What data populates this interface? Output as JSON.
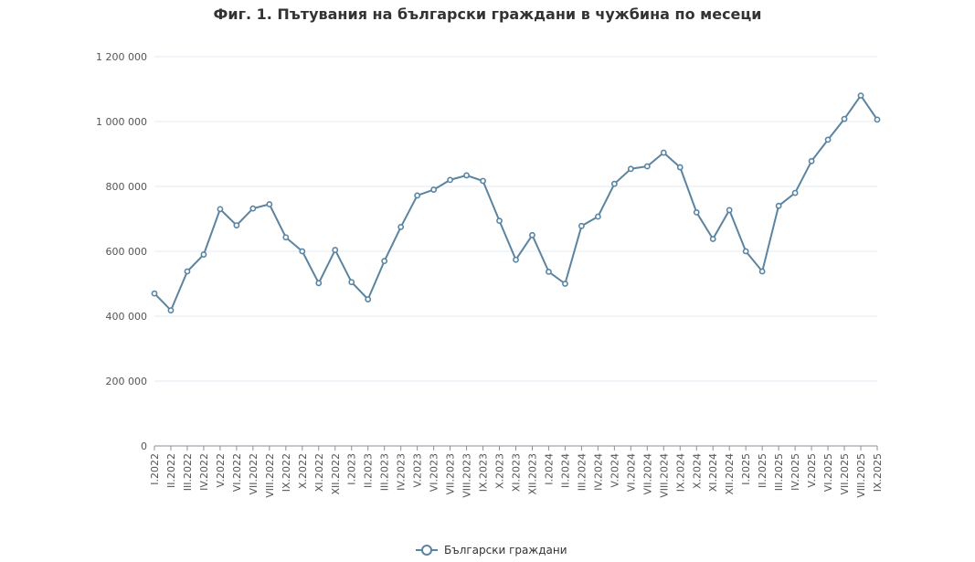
{
  "chart_data": {
    "type": "line",
    "title": "Фиг. 1. Пътувания на български граждани в чужбина по месеци",
    "xlabel": "",
    "ylabel": "",
    "ylim": [
      0,
      1200000
    ],
    "y_ticks": [
      "0",
      "200 000",
      "400 000",
      "600 000",
      "800 000",
      "1 000 000",
      "1 200 000"
    ],
    "y_tick_values": [
      0,
      200000,
      400000,
      600000,
      800000,
      1000000,
      1200000
    ],
    "grid": true,
    "legend_position": "bottom",
    "color": "#5b84a0",
    "categories": [
      "I.2022",
      "II.2022",
      "III.2022",
      "IV.2022",
      "V.2022",
      "VI.2022",
      "VII.2022",
      "VIII.2022",
      "IX.2022",
      "X.2022",
      "XI.2022",
      "XII.2022",
      "I.2023",
      "II.2023",
      "III.2023",
      "IV.2023",
      "V.2023",
      "VI.2023",
      "VII.2023",
      "VIII.2023",
      "IX.2023",
      "X.2023",
      "XI.2023",
      "XII.2023",
      "I.2024",
      "II.2024",
      "III.2024",
      "IV.2024",
      "V.2024",
      "VI.2024",
      "VII.2024",
      "VIII.2024",
      "IX.2024",
      "X.2024",
      "XI.2024",
      "XII.2024",
      "I.2025",
      "II.2025",
      "III.2025",
      "IV.2025",
      "V.2025",
      "VI.2025",
      "VII.2025",
      "VIII.2025",
      "IX.2025"
    ],
    "series": [
      {
        "name": "Български граждани",
        "values": [
          470000,
          418000,
          538000,
          590000,
          730000,
          680000,
          732000,
          745000,
          643000,
          600000,
          502000,
          604000,
          505000,
          452000,
          570000,
          675000,
          772000,
          790000,
          820000,
          834000,
          817000,
          694000,
          574000,
          650000,
          537000,
          500000,
          678000,
          707000,
          808000,
          854000,
          862000,
          904000,
          859000,
          720000,
          638000,
          727000,
          600000,
          538000,
          740000,
          780000,
          878000,
          944000,
          1008000,
          1080000,
          1006000
        ]
      }
    ]
  }
}
